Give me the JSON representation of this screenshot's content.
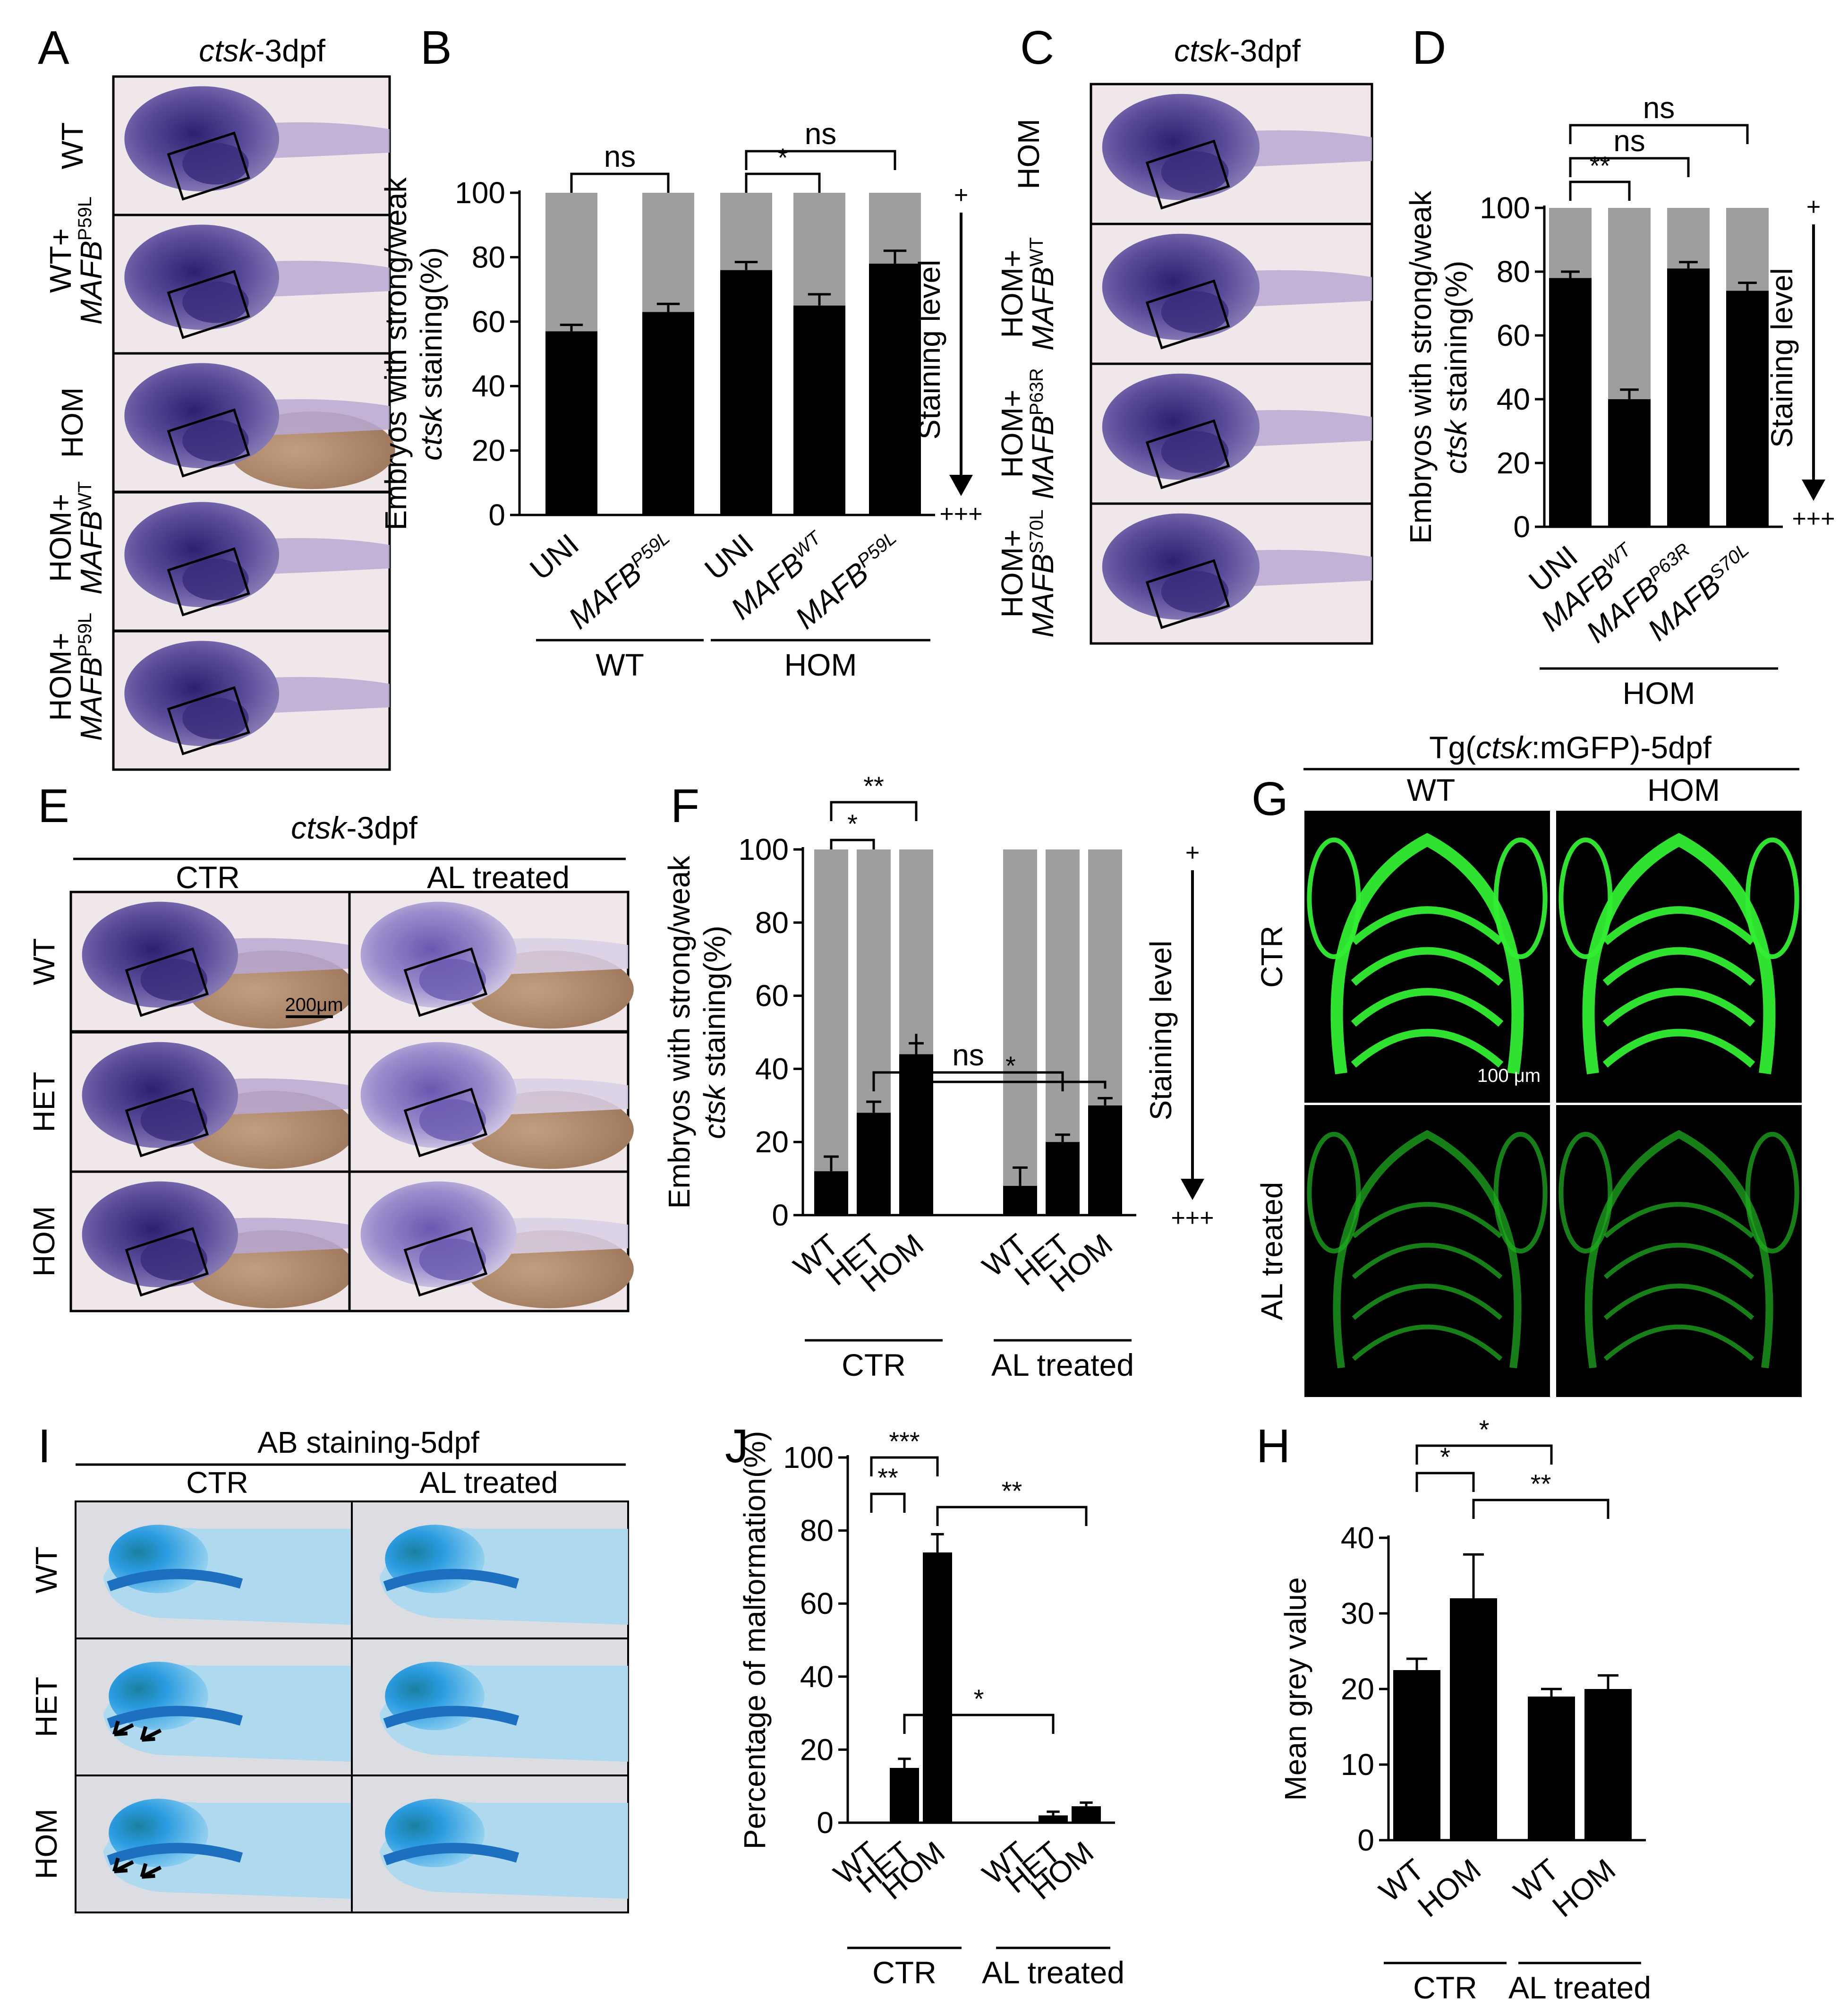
{
  "panel_letters": {
    "A": "A",
    "B": "B",
    "C": "C",
    "D": "D",
    "E": "E",
    "F": "F",
    "G": "G",
    "I": "I",
    "J": "J",
    "H": "H"
  },
  "colors": {
    "embryo_bg": "#efe7ea",
    "embryo_purple": "#4a3a86",
    "yolk": "#c9a98f",
    "fluor_bg": "#000000",
    "fluor": "#22cc22",
    "alcian_bg": "#dcdde3",
    "alcian": "#2f9fe0",
    "bar_black": "#000000",
    "bar_grey": "#9e9e9e"
  },
  "panel_A": {
    "title_it": "ctsk",
    "title_rest": "-3dpf",
    "rows": [
      {
        "label": "WT"
      },
      {
        "label": "WT+",
        "sub": "MAFB",
        "sup": "P59L"
      },
      {
        "label": "HOM"
      },
      {
        "label": "HOM+",
        "sub": "MAFB",
        "sup": "WT"
      },
      {
        "label": "HOM+",
        "sub": "MAFB",
        "sup": "P59L"
      }
    ]
  },
  "panel_C": {
    "title_it": "ctsk",
    "title_rest": "-3dpf",
    "rows": [
      {
        "label": "HOM"
      },
      {
        "label": "HOM+",
        "sub": "MAFB",
        "sup": "WT"
      },
      {
        "label": "HOM+",
        "sub": "MAFB",
        "sup": "P63R"
      },
      {
        "label": "HOM+",
        "sub": "MAFB",
        "sup": "S70L"
      }
    ]
  },
  "panel_E": {
    "title_it": "ctsk",
    "title_rest": "-3dpf",
    "cols": [
      "CTR",
      "AL treated"
    ],
    "rows": [
      "WT",
      "HET",
      "HOM"
    ],
    "scale": "200μm"
  },
  "panel_G": {
    "title_pre": "Tg(",
    "title_it": "ctsk",
    "title_rest": ":mGFP)-5dpf",
    "cols": [
      "WT",
      "HOM"
    ],
    "rows": [
      "CTR",
      "AL treated"
    ],
    "scale": "100 μm"
  },
  "panel_I": {
    "title": "AB staining-5dpf",
    "cols": [
      "CTR",
      "AL treated"
    ],
    "rows": [
      "WT",
      "HET",
      "HOM"
    ]
  },
  "staining_level": {
    "label": "Staining level",
    "plus": "+",
    "plus3": "+++"
  },
  "chart_data": [
    {
      "id": "B",
      "type": "bar",
      "stacked": true,
      "ylabel_line1": "Embryos with strong/weak",
      "ylabel_line2_it": "ctsk",
      "ylabel_line2_rest": " staining(%)",
      "ylim": [
        0,
        100
      ],
      "yticks": [
        0,
        20,
        40,
        60,
        80,
        100
      ],
      "categories": [
        {
          "base": "UNI"
        },
        {
          "base": "MAFB",
          "sup": "P59L"
        },
        {
          "base": "UNI"
        },
        {
          "base": "MAFB",
          "sup": "WT"
        },
        {
          "base": "MAFB",
          "sup": "P59L"
        }
      ],
      "groups": [
        {
          "label": "WT",
          "members": [
            0,
            1
          ]
        },
        {
          "label": "HOM",
          "members": [
            2,
            3,
            4
          ]
        }
      ],
      "values": [
        57,
        63,
        76,
        65,
        78
      ],
      "errors": [
        2,
        2.5,
        2.5,
        3.5,
        4
      ],
      "significance": [
        {
          "a": 0,
          "b": 1,
          "label": "ns"
        },
        {
          "a": 2,
          "b": 3,
          "label": "*"
        },
        {
          "a": 2,
          "b": 4,
          "label": "ns"
        }
      ]
    },
    {
      "id": "D",
      "type": "bar",
      "stacked": true,
      "ylabel_line1": "Embryos with strong/weak",
      "ylabel_line2_it": "ctsk",
      "ylabel_line2_rest": " staining(%)",
      "ylim": [
        0,
        100
      ],
      "yticks": [
        0,
        20,
        40,
        60,
        80,
        100
      ],
      "categories": [
        {
          "base": "UNI"
        },
        {
          "base": "MAFB",
          "sup": "WT"
        },
        {
          "base": "MAFB",
          "sup": "P63R"
        },
        {
          "base": "MAFB",
          "sup": "S70L"
        }
      ],
      "groups": [
        {
          "label": "HOM",
          "members": [
            0,
            1,
            2,
            3
          ]
        }
      ],
      "values": [
        78,
        40,
        81,
        74
      ],
      "errors": [
        2,
        3,
        2,
        2.5
      ],
      "significance": [
        {
          "a": 0,
          "b": 1,
          "label": "**"
        },
        {
          "a": 0,
          "b": 2,
          "label": "ns"
        },
        {
          "a": 0,
          "b": 3,
          "label": "ns"
        }
      ]
    },
    {
      "id": "F",
      "type": "bar",
      "stacked": true,
      "ylabel_line1": "Embryos with strong/weak",
      "ylabel_line2_it": "ctsk",
      "ylabel_line2_rest": " staining(%)",
      "ylim": [
        0,
        100
      ],
      "yticks": [
        0,
        20,
        40,
        60,
        80,
        100
      ],
      "categories": [
        {
          "base": "WT"
        },
        {
          "base": "HET"
        },
        {
          "base": "HOM"
        },
        {
          "base": "WT"
        },
        {
          "base": "HET"
        },
        {
          "base": "HOM"
        }
      ],
      "groups": [
        {
          "label": "CTR",
          "members": [
            0,
            1,
            2
          ]
        },
        {
          "label": "AL treated",
          "members": [
            3,
            4,
            5
          ]
        }
      ],
      "values": [
        12,
        28,
        44,
        8,
        20,
        30
      ],
      "errors": [
        4,
        3,
        3,
        5,
        2,
        2
      ],
      "significance": [
        {
          "a": 0,
          "b": 1,
          "label": "*"
        },
        {
          "a": 0,
          "b": 2,
          "label": "**"
        },
        {
          "a": 2,
          "b": 5,
          "label": "*"
        },
        {
          "a": 1,
          "b": 4,
          "label": "ns"
        }
      ]
    },
    {
      "id": "J",
      "type": "bar",
      "stacked": false,
      "ylabel": "Percentage of malformation(%)",
      "ylim": [
        0,
        100
      ],
      "yticks": [
        0,
        20,
        40,
        60,
        80,
        100
      ],
      "categories": [
        {
          "base": "WT"
        },
        {
          "base": "HET"
        },
        {
          "base": "HOM"
        },
        {
          "base": "WT"
        },
        {
          "base": "HET"
        },
        {
          "base": "HOM"
        }
      ],
      "groups": [
        {
          "label": "CTR",
          "members": [
            0,
            1,
            2
          ]
        },
        {
          "label": "AL treated",
          "members": [
            3,
            4,
            5
          ]
        }
      ],
      "values": [
        0,
        15,
        74,
        0,
        2,
        4.5
      ],
      "errors": [
        0,
        2.5,
        5,
        0,
        1,
        1
      ],
      "significance": [
        {
          "a": 0,
          "b": 1,
          "label": "**"
        },
        {
          "a": 0,
          "b": 2,
          "label": "***"
        },
        {
          "a": 2,
          "b": 5,
          "label": "**"
        },
        {
          "a": 1,
          "b": 4,
          "label": "*"
        }
      ]
    },
    {
      "id": "H",
      "type": "bar",
      "stacked": false,
      "ylabel": "Mean grey value",
      "ylim": [
        0,
        40
      ],
      "yticks": [
        0,
        10,
        20,
        30,
        40
      ],
      "categories": [
        {
          "base": "WT"
        },
        {
          "base": "HOM"
        },
        {
          "base": "WT"
        },
        {
          "base": "HOM"
        }
      ],
      "groups": [
        {
          "label": "CTR",
          "members": [
            0,
            1
          ]
        },
        {
          "label": "AL treated",
          "members": [
            2,
            3
          ]
        }
      ],
      "values": [
        22.5,
        32,
        19,
        20
      ],
      "errors": [
        1.5,
        5.8,
        1,
        1.8
      ],
      "significance": [
        {
          "a": 0,
          "b": 2,
          "label": "*"
        },
        {
          "a": 0,
          "b": 1,
          "label": "*"
        },
        {
          "a": 1,
          "b": 3,
          "label": "**"
        }
      ]
    }
  ]
}
